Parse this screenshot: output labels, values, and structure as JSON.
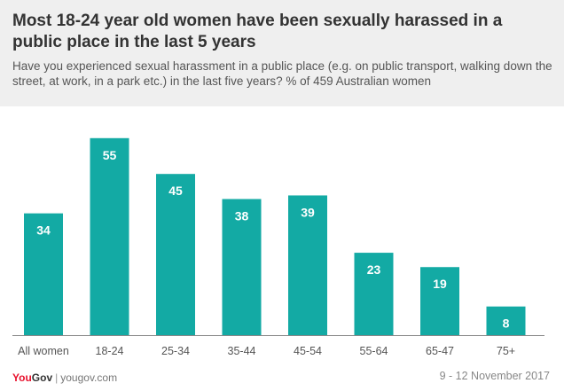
{
  "header": {
    "title": "Most 18-24 year old women have been sexually harassed in a public place in the last 5 years",
    "subtitle": "Have you experienced sexual harassment in a public place (e.g. on public transport, walking down the street, at work, in a park etc.) in the last five years? % of 459 Australian women"
  },
  "footer": {
    "brand_you": "You",
    "brand_gov": "Gov",
    "separator": "|",
    "url": "yougov.com",
    "date": "9 - 12 November 2017"
  },
  "colors": {
    "bar": "#13aaa4",
    "value_label": "#ffffff",
    "axis": "#888888"
  },
  "chart_data": {
    "type": "bar",
    "categories": [
      "All women",
      "18-24",
      "25-34",
      "35-44",
      "45-54",
      "55-64",
      "65-47",
      "75+"
    ],
    "values": [
      34,
      55,
      45,
      38,
      39,
      23,
      19,
      8
    ],
    "ylim": [
      0,
      60
    ],
    "grid": false,
    "data_labels": true
  }
}
